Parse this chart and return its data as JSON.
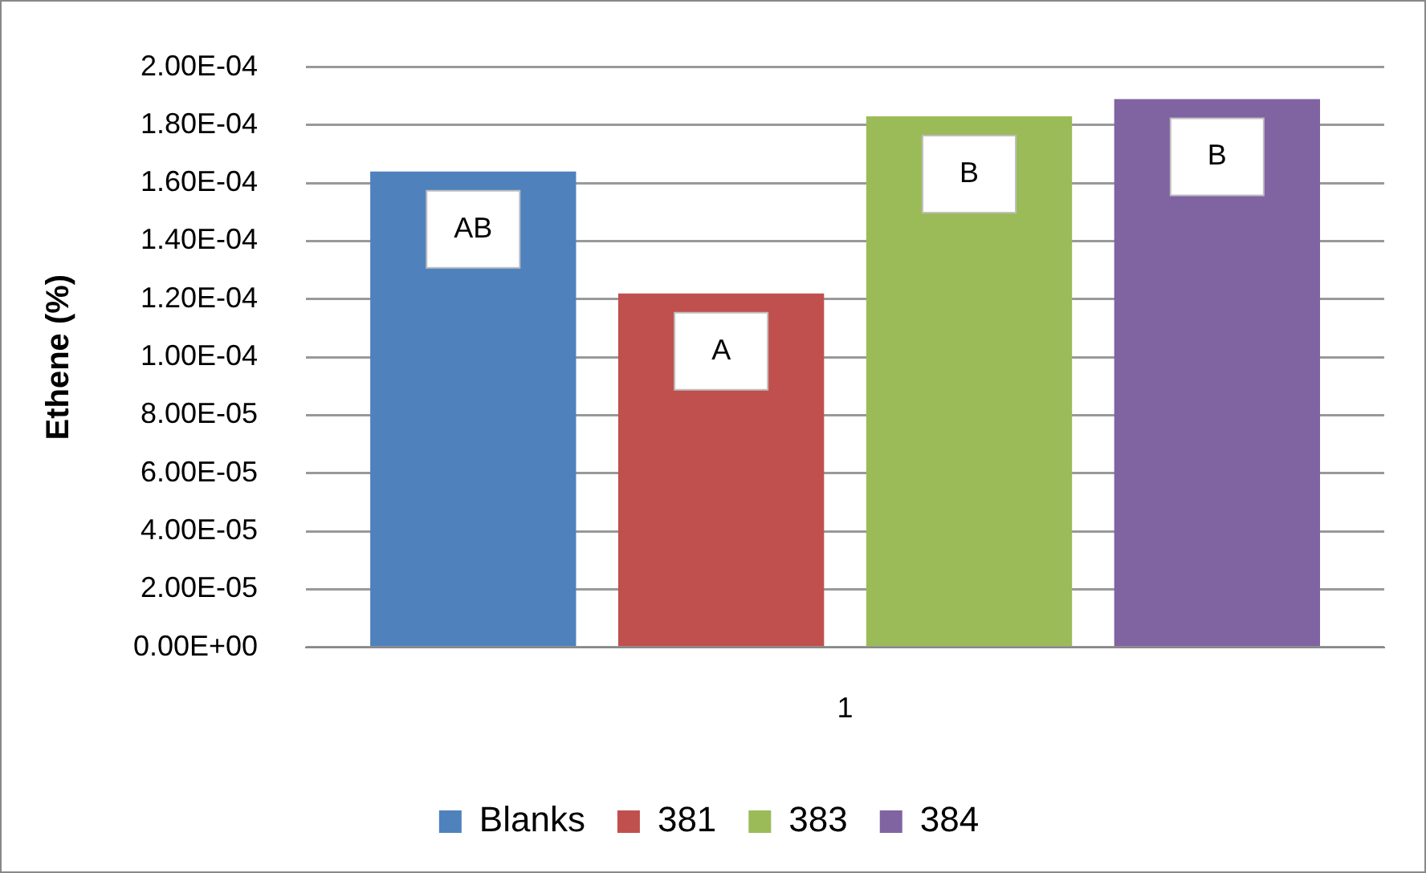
{
  "chart_data": {
    "type": "bar",
    "ylabel": "Ethene (%)",
    "categories": [
      "1"
    ],
    "series": [
      {
        "name": "Blanks",
        "color": "#4f81bd",
        "values": [
          0.000164
        ],
        "value_labels": [
          "AB"
        ]
      },
      {
        "name": "381",
        "color": "#c0504d",
        "values": [
          0.000122
        ],
        "value_labels": [
          "A"
        ]
      },
      {
        "name": "383",
        "color": "#9bbb59",
        "values": [
          0.000183
        ],
        "value_labels": [
          "B"
        ]
      },
      {
        "name": "384",
        "color": "#8064a2",
        "values": [
          0.000189
        ],
        "value_labels": [
          "B"
        ]
      }
    ],
    "ylim": [
      0,
      0.0002
    ],
    "yticks": [
      {
        "value": 0,
        "label": "0.00E+00"
      },
      {
        "value": 2e-05,
        "label": "2.00E-05"
      },
      {
        "value": 4e-05,
        "label": "4.00E-05"
      },
      {
        "value": 6e-05,
        "label": "6.00E-05"
      },
      {
        "value": 8e-05,
        "label": "8.00E-05"
      },
      {
        "value": 0.0001,
        "label": "1.00E-04"
      },
      {
        "value": 0.00012,
        "label": "1.20E-04"
      },
      {
        "value": 0.00014,
        "label": "1.40E-04"
      },
      {
        "value": 0.00016,
        "label": "1.60E-04"
      },
      {
        "value": 0.00018,
        "label": "1.80E-04"
      },
      {
        "value": 0.0002,
        "label": "2.00E-04"
      }
    ],
    "grid": "y",
    "legend": "bottom"
  }
}
